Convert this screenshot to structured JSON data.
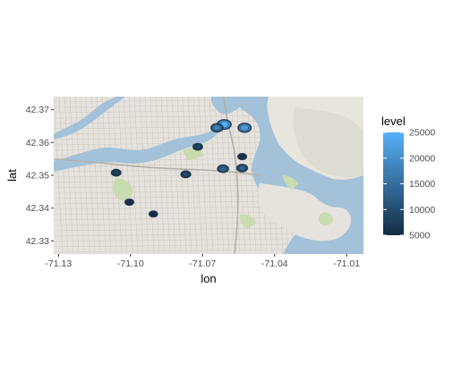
{
  "chart_data": {
    "type": "heatmap",
    "title": "",
    "xlabel": "lon",
    "ylabel": "lat",
    "xlim": [
      -71.132,
      -71.003
    ],
    "ylim": [
      42.326,
      42.374
    ],
    "x_ticks": [
      -71.13,
      -71.1,
      -71.07,
      -71.04,
      -71.01
    ],
    "x_tick_labels": [
      "-71.13",
      "-71.10",
      "-71.07",
      "-71.04",
      "-71.01"
    ],
    "y_ticks": [
      42.33,
      42.34,
      42.35,
      42.36,
      42.37
    ],
    "y_tick_labels": [
      "42.33",
      "42.34",
      "42.35",
      "42.36",
      "42.37"
    ],
    "basemap": "street map (Boston)",
    "legend": {
      "title": "level",
      "position": "right",
      "min": 5000,
      "max": 25000,
      "breaks": [
        5000,
        10000,
        15000,
        20000,
        25000
      ],
      "break_labels": [
        "5000",
        "10000",
        "15000",
        "20000",
        "25000"
      ],
      "color_low": "#132b43",
      "color_high": "#56b1f7"
    },
    "points": [
      {
        "lon": -71.061,
        "lat": 42.3655,
        "level": 25000
      },
      {
        "lon": -71.0525,
        "lat": 42.3645,
        "level": 22000
      },
      {
        "lon": -71.064,
        "lat": 42.3645,
        "level": 18000
      },
      {
        "lon": -71.106,
        "lat": 42.3508,
        "level": 9000
      },
      {
        "lon": -71.077,
        "lat": 42.3503,
        "level": 10000
      },
      {
        "lon": -71.072,
        "lat": 42.3587,
        "level": 9000
      },
      {
        "lon": -71.0615,
        "lat": 42.352,
        "level": 14000
      },
      {
        "lon": -71.0535,
        "lat": 42.3522,
        "level": 13000
      },
      {
        "lon": -71.0535,
        "lat": 42.3557,
        "level": 6000
      },
      {
        "lon": -71.1005,
        "lat": 42.3418,
        "level": 6000
      },
      {
        "lon": -71.0905,
        "lat": 42.3382,
        "level": 5000
      }
    ]
  }
}
